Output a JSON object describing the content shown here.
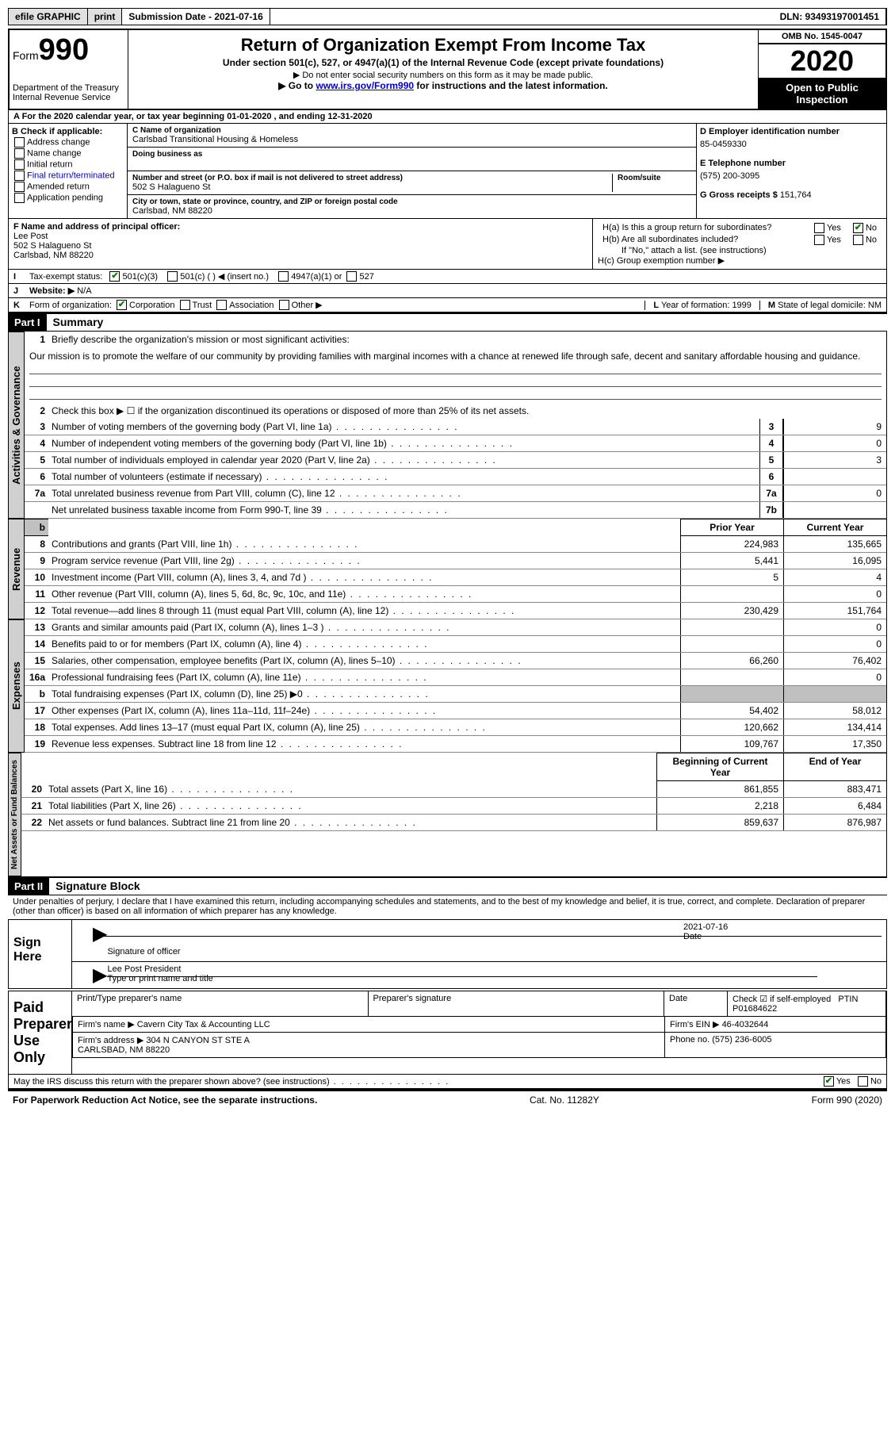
{
  "topbar": {
    "efile": "efile GRAPHIC",
    "print": "print",
    "submission": "Submission Date - 2021-07-16",
    "dln": "DLN: 93493197001451"
  },
  "header": {
    "form": "Form",
    "form_no": "990",
    "dept": "Department of the Treasury\nInternal Revenue Service",
    "title": "Return of Organization Exempt From Income Tax",
    "sub1": "Under section 501(c), 527, or 4947(a)(1) of the Internal Revenue Code (except private foundations)",
    "sub2": "▶ Do not enter social security numbers on this form as it may be made public.",
    "sub3_a": "▶ Go to ",
    "sub3_link": "www.irs.gov/Form990",
    "sub3_b": " for instructions and the latest information.",
    "omb": "OMB No. 1545-0047",
    "year": "2020",
    "inspect": "Open to Public Inspection"
  },
  "period": "A For the 2020 calendar year, or tax year beginning 01-01-2020   , and ending 12-31-2020",
  "boxB": {
    "label": "B Check if applicable:",
    "items": [
      "Address change",
      "Name change",
      "Initial return",
      "Final return/terminated",
      "Amended return",
      "Application pending"
    ]
  },
  "boxC": {
    "name_label": "C Name of organization",
    "name": "Carlsbad Transitional Housing & Homeless",
    "dba_label": "Doing business as",
    "addr_label": "Number and street (or P.O. box if mail is not delivered to street address)",
    "room_label": "Room/suite",
    "addr": "502 S Halagueno St",
    "city_label": "City or town, state or province, country, and ZIP or foreign postal code",
    "city": "Carlsbad, NM  88220"
  },
  "boxD": {
    "label": "D Employer identification number",
    "value": "85-0459330"
  },
  "boxE": {
    "label": "E Telephone number",
    "value": "(575) 200-3095"
  },
  "boxG": {
    "label": "G Gross receipts $",
    "value": "151,764"
  },
  "boxF": {
    "label": "F  Name and address of principal officer:",
    "name": "Lee Post",
    "addr1": "502 S Halagueno St",
    "addr2": "Carlsbad, NM  88220"
  },
  "boxH": {
    "a": "H(a)  Is this a group return for subordinates?",
    "b": "H(b)  Are all subordinates included?",
    "b_note": "If \"No,\" attach a list. (see instructions)",
    "c": "H(c)  Group exemption number ▶",
    "yes": "Yes",
    "no": "No"
  },
  "rowI": {
    "label": "I",
    "text": "Tax-exempt status:",
    "o1": "501(c)(3)",
    "o2": "501(c) (  ) ◀ (insert no.)",
    "o3": "4947(a)(1) or",
    "o4": "527"
  },
  "rowJ": {
    "label": "J",
    "text": "Website: ▶",
    "value": "N/A"
  },
  "rowK": {
    "label": "K",
    "text": "Form of organization:",
    "o1": "Corporation",
    "o2": "Trust",
    "o3": "Association",
    "o4": "Other ▶"
  },
  "rowL": {
    "label": "L",
    "text": "Year of formation:",
    "value": "1999"
  },
  "rowM": {
    "label": "M",
    "text": "State of legal domicile:",
    "value": "NM"
  },
  "part1": {
    "hdr": "Part I",
    "title": "Summary"
  },
  "gov": {
    "label": "Activities & Governance",
    "l1": "Briefly describe the organization's mission or most significant activities:",
    "mission": "Our mission is to promote the welfare of our community by providing families with marginal incomes with a chance at renewed life through safe, decent and sanitary affordable housing and guidance.",
    "l2": "Check this box ▶ ☐  if the organization discontinued its operations or disposed of more than 25% of its net assets.",
    "lines": [
      {
        "n": "3",
        "t": "Number of voting members of the governing body (Part VI, line 1a)",
        "b": "3",
        "v": "9"
      },
      {
        "n": "4",
        "t": "Number of independent voting members of the governing body (Part VI, line 1b)",
        "b": "4",
        "v": "0"
      },
      {
        "n": "5",
        "t": "Total number of individuals employed in calendar year 2020 (Part V, line 2a)",
        "b": "5",
        "v": "3"
      },
      {
        "n": "6",
        "t": "Total number of volunteers (estimate if necessary)",
        "b": "6",
        "v": ""
      },
      {
        "n": "7a",
        "t": "Total unrelated business revenue from Part VIII, column (C), line 12",
        "b": "7a",
        "v": "0"
      },
      {
        "n": "",
        "t": "Net unrelated business taxable income from Form 990-T, line 39",
        "b": "7b",
        "v": ""
      }
    ]
  },
  "col_hdr": {
    "prior": "Prior Year",
    "current": "Current Year",
    "boy": "Beginning of Current Year",
    "eoy": "End of Year"
  },
  "rev": {
    "label": "Revenue",
    "lines": [
      {
        "n": "8",
        "t": "Contributions and grants (Part VIII, line 1h)",
        "p": "224,983",
        "c": "135,665"
      },
      {
        "n": "9",
        "t": "Program service revenue (Part VIII, line 2g)",
        "p": "5,441",
        "c": "16,095"
      },
      {
        "n": "10",
        "t": "Investment income (Part VIII, column (A), lines 3, 4, and 7d )",
        "p": "5",
        "c": "4"
      },
      {
        "n": "11",
        "t": "Other revenue (Part VIII, column (A), lines 5, 6d, 8c, 9c, 10c, and 11e)",
        "p": "",
        "c": "0"
      },
      {
        "n": "12",
        "t": "Total revenue—add lines 8 through 11 (must equal Part VIII, column (A), line 12)",
        "p": "230,429",
        "c": "151,764"
      }
    ]
  },
  "exp": {
    "label": "Expenses",
    "lines": [
      {
        "n": "13",
        "t": "Grants and similar amounts paid (Part IX, column (A), lines 1–3 )",
        "p": "",
        "c": "0"
      },
      {
        "n": "14",
        "t": "Benefits paid to or for members (Part IX, column (A), line 4)",
        "p": "",
        "c": "0"
      },
      {
        "n": "15",
        "t": "Salaries, other compensation, employee benefits (Part IX, column (A), lines 5–10)",
        "p": "66,260",
        "c": "76,402"
      },
      {
        "n": "16a",
        "t": "Professional fundraising fees (Part IX, column (A), line 11e)",
        "p": "",
        "c": "0"
      },
      {
        "n": "b",
        "t": "Total fundraising expenses (Part IX, column (D), line 25) ▶0",
        "p": "shaded",
        "c": "shaded"
      },
      {
        "n": "17",
        "t": "Other expenses (Part IX, column (A), lines 11a–11d, 11f–24e)",
        "p": "54,402",
        "c": "58,012"
      },
      {
        "n": "18",
        "t": "Total expenses. Add lines 13–17 (must equal Part IX, column (A), line 25)",
        "p": "120,662",
        "c": "134,414"
      },
      {
        "n": "19",
        "t": "Revenue less expenses. Subtract line 18 from line 12",
        "p": "109,767",
        "c": "17,350"
      }
    ]
  },
  "na": {
    "label": "Net Assets or Fund Balances",
    "lines": [
      {
        "n": "20",
        "t": "Total assets (Part X, line 16)",
        "p": "861,855",
        "c": "883,471"
      },
      {
        "n": "21",
        "t": "Total liabilities (Part X, line 26)",
        "p": "2,218",
        "c": "6,484"
      },
      {
        "n": "22",
        "t": "Net assets or fund balances. Subtract line 21 from line 20",
        "p": "859,637",
        "c": "876,987"
      }
    ]
  },
  "part2": {
    "hdr": "Part II",
    "title": "Signature Block"
  },
  "penalty": "Under penalties of perjury, I declare that I have examined this return, including accompanying schedules and statements, and to the best of my knowledge and belief, it is true, correct, and complete. Declaration of preparer (other than officer) is based on all information of which preparer has any knowledge.",
  "sign": {
    "here": "Sign Here",
    "sig_officer": "Signature of officer",
    "date": "Date",
    "date_val": "2021-07-16",
    "name_title": "Lee Post  President",
    "type_name": "Type or print name and title"
  },
  "prep": {
    "here": "Paid Preparer Use Only",
    "h1": "Print/Type preparer's name",
    "h2": "Preparer's signature",
    "h3": "Date",
    "h4a": "Check ☑ if self-employed",
    "h4b": "PTIN",
    "ptin": "P01684622",
    "firm_label": "Firm's name    ▶",
    "firm": "Cavern City Tax & Accounting LLC",
    "ein_label": "Firm's EIN ▶",
    "ein": "46-4032644",
    "addr_label": "Firm's address ▶",
    "addr": "304 N CANYON ST STE A\nCARLSBAD, NM  88220",
    "phone_label": "Phone no.",
    "phone": "(575) 236-6005"
  },
  "discuss": {
    "text": "May the IRS discuss this return with the preparer shown above? (see instructions)",
    "yes": "Yes",
    "no": "No"
  },
  "footer": {
    "left": "For Paperwork Reduction Act Notice, see the separate instructions.",
    "mid": "Cat. No. 11282Y",
    "right": "Form 990 (2020)"
  }
}
